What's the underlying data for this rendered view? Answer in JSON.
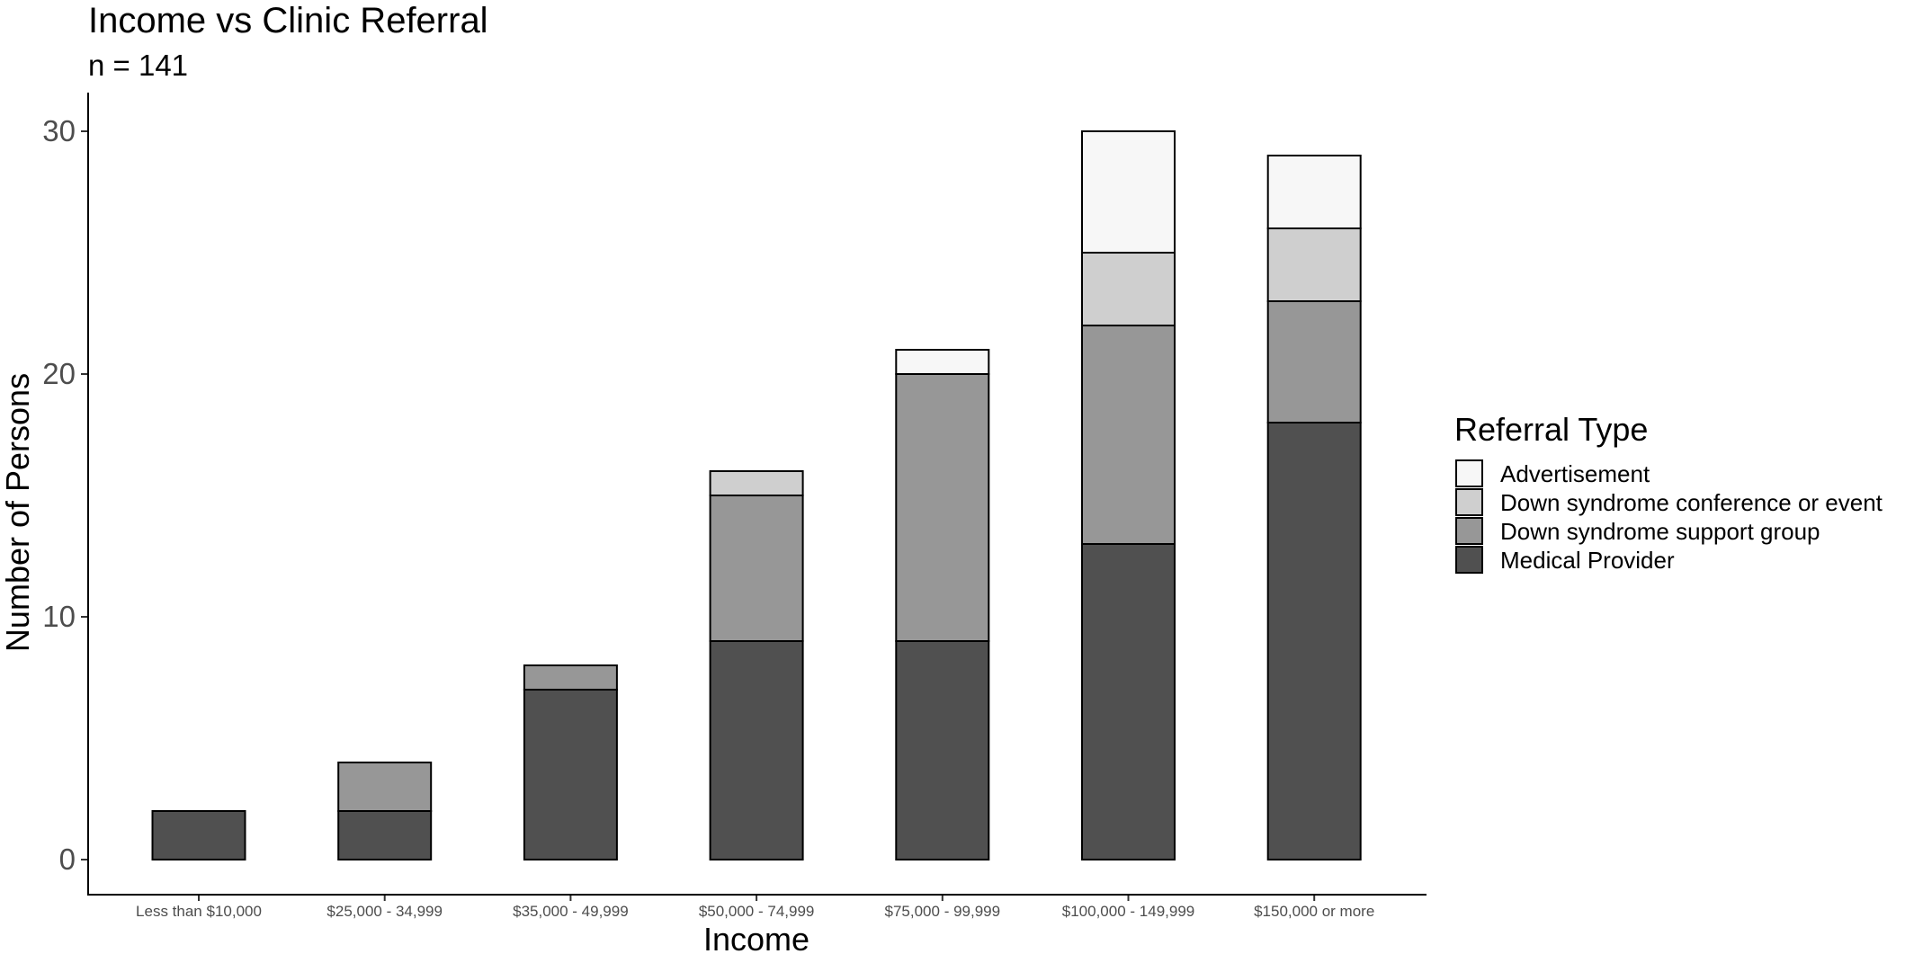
{
  "chart_data": {
    "type": "bar",
    "stacked": true,
    "title": "Income vs Clinic Referral",
    "subtitle": "n = 141",
    "xlabel": "Income",
    "ylabel": "Number of Persons",
    "categories": [
      "Less than $10,000",
      "$25,000 - 34,999",
      "$35,000 - 49,999",
      "$50,000 - 74,999",
      "$75,000 - 99,999",
      "$100,000 - 149,999",
      "$150,000 or more"
    ],
    "ylim": [
      0,
      31.5
    ],
    "yticks": [
      0,
      10,
      20,
      30
    ],
    "grid": false,
    "legend": {
      "title": "Referral Type",
      "position": "right",
      "entries": [
        "Advertisement",
        "Down syndrome conference or event",
        "Down syndrome support group",
        "Medical Provider"
      ]
    },
    "series": [
      {
        "name": "Medical Provider",
        "color": "#505050",
        "values": [
          2,
          2,
          7,
          9,
          9,
          13,
          18
        ]
      },
      {
        "name": "Down syndrome support group",
        "color": "#979797",
        "values": [
          0,
          2,
          1,
          6,
          11,
          9,
          5
        ]
      },
      {
        "name": "Down syndrome conference or event",
        "color": "#cfcfcf",
        "values": [
          0,
          0,
          0,
          1,
          0,
          3,
          3
        ]
      },
      {
        "name": "Advertisement",
        "color": "#f7f7f7",
        "values": [
          0,
          0,
          0,
          0,
          1,
          5,
          3
        ]
      }
    ]
  }
}
